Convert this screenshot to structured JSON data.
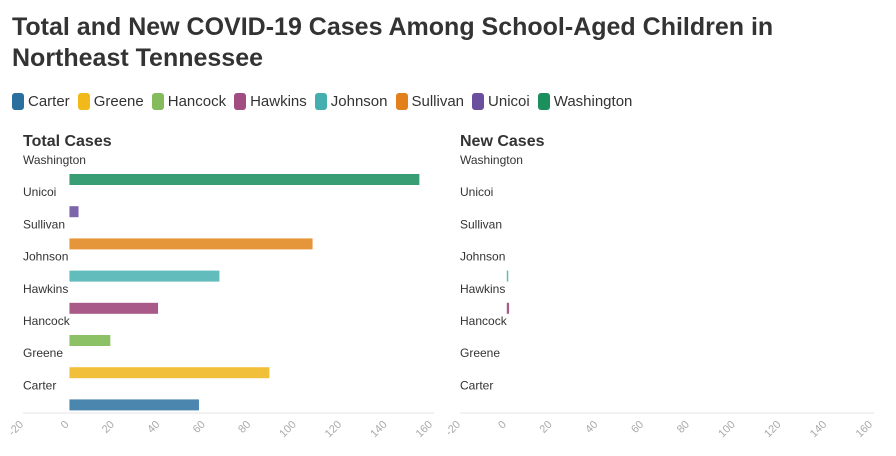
{
  "title": "Total and New COVID-19 Cases Among School-Aged Children in Northeast Tennessee",
  "legend": [
    {
      "name": "Carter",
      "color": "#2a6f9e"
    },
    {
      "name": "Greene",
      "color": "#f2b91b"
    },
    {
      "name": "Hancock",
      "color": "#84bb5c"
    },
    {
      "name": "Hawkins",
      "color": "#a24d80"
    },
    {
      "name": "Johnson",
      "color": "#45afaf"
    },
    {
      "name": "Sullivan",
      "color": "#e2801b"
    },
    {
      "name": "Unicoi",
      "color": "#6a4f9e"
    },
    {
      "name": "Washington",
      "color": "#1b8f5c"
    }
  ],
  "chart_data": [
    {
      "type": "bar",
      "title": "Total Cases",
      "categories": [
        "Washington",
        "Unicoi",
        "Sullivan",
        "Johnson",
        "Hawkins",
        "Hancock",
        "Greene",
        "Carter"
      ],
      "values": [
        154,
        4,
        107,
        66,
        39,
        18,
        88,
        57
      ],
      "colors": [
        "#3a9e74",
        "#7e64a8",
        "#e6963a",
        "#62bcbb",
        "#a95a88",
        "#8dc165",
        "#f2bf3a",
        "#4a86ad"
      ],
      "xlim": [
        -20,
        160
      ],
      "xticks": [
        -20,
        0,
        20,
        40,
        60,
        80,
        100,
        120,
        140,
        160
      ]
    },
    {
      "type": "bar",
      "title": "New Cases",
      "categories": [
        "Washington",
        "Unicoi",
        "Sullivan",
        "Johnson",
        "Hawkins",
        "Hancock",
        "Greene",
        "Carter"
      ],
      "values": [
        0,
        0,
        0,
        0.5,
        1,
        0,
        0,
        0
      ],
      "colors": [
        "#3a9e74",
        "#7e64a8",
        "#e6963a",
        "#62bcbb",
        "#a95a88",
        "#8dc165",
        "#f2bf3a",
        "#4a86ad"
      ],
      "xlim": [
        -20,
        160
      ],
      "xticks": [
        -20,
        0,
        20,
        40,
        60,
        80,
        100,
        120,
        140,
        160
      ]
    }
  ]
}
